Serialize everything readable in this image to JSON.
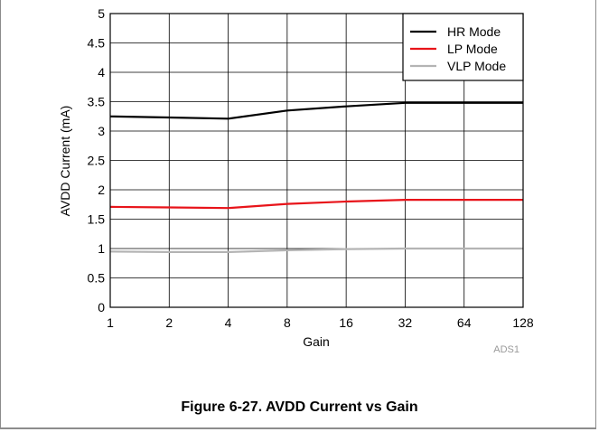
{
  "chart_data": {
    "type": "line",
    "xlabel": "Gain",
    "ylabel": "AVDD Current (mA)",
    "x_scale": "log2",
    "categories": [
      "1",
      "2",
      "4",
      "8",
      "16",
      "32",
      "64",
      "128"
    ],
    "x": [
      1,
      2,
      4,
      8,
      16,
      32,
      64,
      128
    ],
    "ylim": [
      0,
      5
    ],
    "yticks": [
      "0",
      "0.5",
      "1",
      "1.5",
      "2",
      "2.5",
      "3",
      "3.5",
      "4",
      "4.5",
      "5"
    ],
    "grid": true,
    "legend_position": "top-right",
    "series": [
      {
        "name": "HR Mode",
        "color": "#000000",
        "values": [
          3.25,
          3.23,
          3.21,
          3.35,
          3.42,
          3.48,
          3.48,
          3.48
        ]
      },
      {
        "name": "LP Mode",
        "color": "#e8141a",
        "values": [
          1.71,
          1.7,
          1.69,
          1.76,
          1.8,
          1.83,
          1.83,
          1.83
        ]
      },
      {
        "name": "VLP Mode",
        "color": "#b4b4b4",
        "values": [
          0.95,
          0.94,
          0.94,
          0.97,
          0.99,
          1.0,
          1.0,
          1.0
        ]
      }
    ],
    "watermark": "ADS1"
  },
  "figure": {
    "caption": "Figure 6-27. AVDD Current vs Gain"
  }
}
